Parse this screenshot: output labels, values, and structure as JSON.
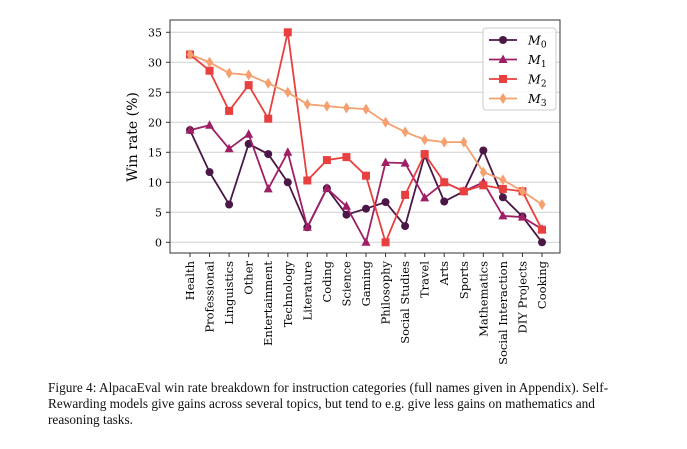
{
  "chart_data": {
    "type": "line",
    "ylabel": "Win rate (%)",
    "xlabel": "",
    "ylim": [
      -1.75,
      36.75
    ],
    "yticks": [
      0,
      5,
      10,
      15,
      20,
      25,
      30,
      35
    ],
    "grid": "horizontal",
    "legend": "top-right",
    "categories": [
      "Health",
      "Professional",
      "Linguistics",
      "Other",
      "Entertainment",
      "Technology",
      "Literature",
      "Coding",
      "Science",
      "Gaming",
      "Philosophy",
      "Social Studies",
      "Travel",
      "Arts",
      "Sports",
      "Mathematics",
      "Social Interaction",
      "DIY Projects",
      "Cooking"
    ],
    "series": [
      {
        "name": "M",
        "sub": "0",
        "color": "#4a1747",
        "marker": "circle",
        "values": [
          18.7,
          11.7,
          6.3,
          16.4,
          14.7,
          10.0,
          2.5,
          9.0,
          4.6,
          5.6,
          6.7,
          2.7,
          14.5,
          6.8,
          8.5,
          15.3,
          7.5,
          4.3,
          0.0
        ]
      },
      {
        "name": "M",
        "sub": "1",
        "color": "#9e1f63",
        "marker": "triangle",
        "values": [
          18.7,
          19.5,
          15.6,
          18.0,
          8.9,
          15.0,
          2.5,
          9.0,
          6.0,
          0.0,
          13.3,
          13.2,
          7.4,
          10.0,
          8.5,
          10.0,
          4.4,
          4.2,
          2.2
        ]
      },
      {
        "name": "M",
        "sub": "2",
        "color": "#e8403e",
        "marker": "square",
        "values": [
          31.3,
          28.6,
          21.9,
          26.2,
          20.6,
          35.0,
          10.3,
          13.7,
          14.2,
          11.1,
          0.0,
          7.9,
          14.7,
          10.0,
          8.5,
          9.5,
          8.9,
          8.5,
          2.1
        ]
      },
      {
        "name": "M",
        "sub": "3",
        "color": "#f5a06e",
        "marker": "diamond",
        "values": [
          31.3,
          30.0,
          28.2,
          27.9,
          26.5,
          25.0,
          23.0,
          22.7,
          22.4,
          22.2,
          20.0,
          18.4,
          17.1,
          16.7,
          16.7,
          11.7,
          10.4,
          8.5,
          6.3
        ]
      }
    ]
  },
  "caption": "Figure 4: AlpacaEval win rate breakdown for instruction categories (full names given in Appendix). Self-Rewarding models give gains across several topics, but tend to e.g. give less gains on mathematics and reasoning tasks."
}
